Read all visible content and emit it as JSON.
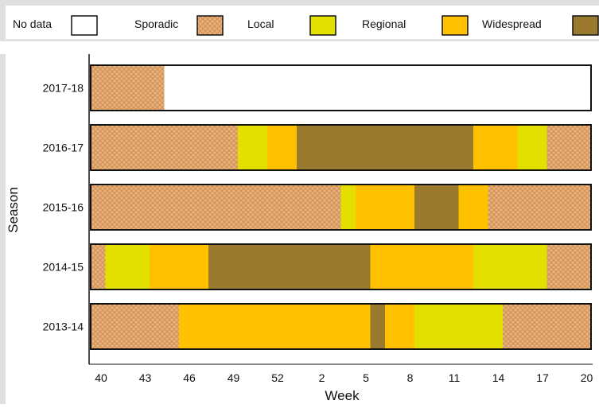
{
  "chart_data": {
    "type": "bar",
    "orientation": "horizontal-stacked",
    "xlabel": "Week",
    "ylabel": "Season",
    "x_ticks": [
      "40",
      "43",
      "46",
      "49",
      "52",
      "2",
      "5",
      "8",
      "11",
      "14",
      "17",
      "20"
    ],
    "xlim": [
      "40",
      "20"
    ],
    "legend_position": "top",
    "legend": [
      {
        "key": "nodata",
        "label": "No data",
        "color": "#ffffff",
        "pattern": false
      },
      {
        "key": "sporadic",
        "label": "Sporadic",
        "color": "#e8b07a",
        "pattern": true
      },
      {
        "key": "local",
        "label": "Local",
        "color": "#e3e000",
        "pattern": false
      },
      {
        "key": "regional",
        "label": "Regional",
        "color": "#ffc000",
        "pattern": false
      },
      {
        "key": "widespread",
        "label": "Widespread",
        "color": "#9a7a2e",
        "pattern": false
      }
    ],
    "seasons": [
      {
        "label": "2017-18",
        "segments": [
          {
            "level": "sporadic",
            "weeks": 5
          },
          {
            "level": "nodata",
            "weeks": 29
          }
        ]
      },
      {
        "label": "2016-17",
        "segments": [
          {
            "level": "sporadic",
            "weeks": 10
          },
          {
            "level": "local",
            "weeks": 2
          },
          {
            "level": "regional",
            "weeks": 2
          },
          {
            "level": "widespread",
            "weeks": 12
          },
          {
            "level": "regional",
            "weeks": 3
          },
          {
            "level": "local",
            "weeks": 2
          },
          {
            "level": "sporadic",
            "weeks": 3
          }
        ]
      },
      {
        "label": "2015-16",
        "segments": [
          {
            "level": "sporadic",
            "weeks": 17
          },
          {
            "level": "local",
            "weeks": 1
          },
          {
            "level": "regional",
            "weeks": 4
          },
          {
            "level": "widespread",
            "weeks": 3
          },
          {
            "level": "regional",
            "weeks": 2
          },
          {
            "level": "sporadic",
            "weeks": 7
          }
        ]
      },
      {
        "label": "2014-15",
        "segments": [
          {
            "level": "sporadic",
            "weeks": 1
          },
          {
            "level": "local",
            "weeks": 3
          },
          {
            "level": "regional",
            "weeks": 4
          },
          {
            "level": "widespread",
            "weeks": 11
          },
          {
            "level": "regional",
            "weeks": 7
          },
          {
            "level": "local",
            "weeks": 5
          },
          {
            "level": "sporadic",
            "weeks": 3
          }
        ]
      },
      {
        "label": "2013-14",
        "segments": [
          {
            "level": "sporadic",
            "weeks": 6
          },
          {
            "level": "regional",
            "weeks": 13
          },
          {
            "level": "widespread",
            "weeks": 1
          },
          {
            "level": "regional",
            "weeks": 2
          },
          {
            "level": "local",
            "weeks": 6
          },
          {
            "level": "sporadic",
            "weeks": 6
          }
        ]
      }
    ]
  }
}
